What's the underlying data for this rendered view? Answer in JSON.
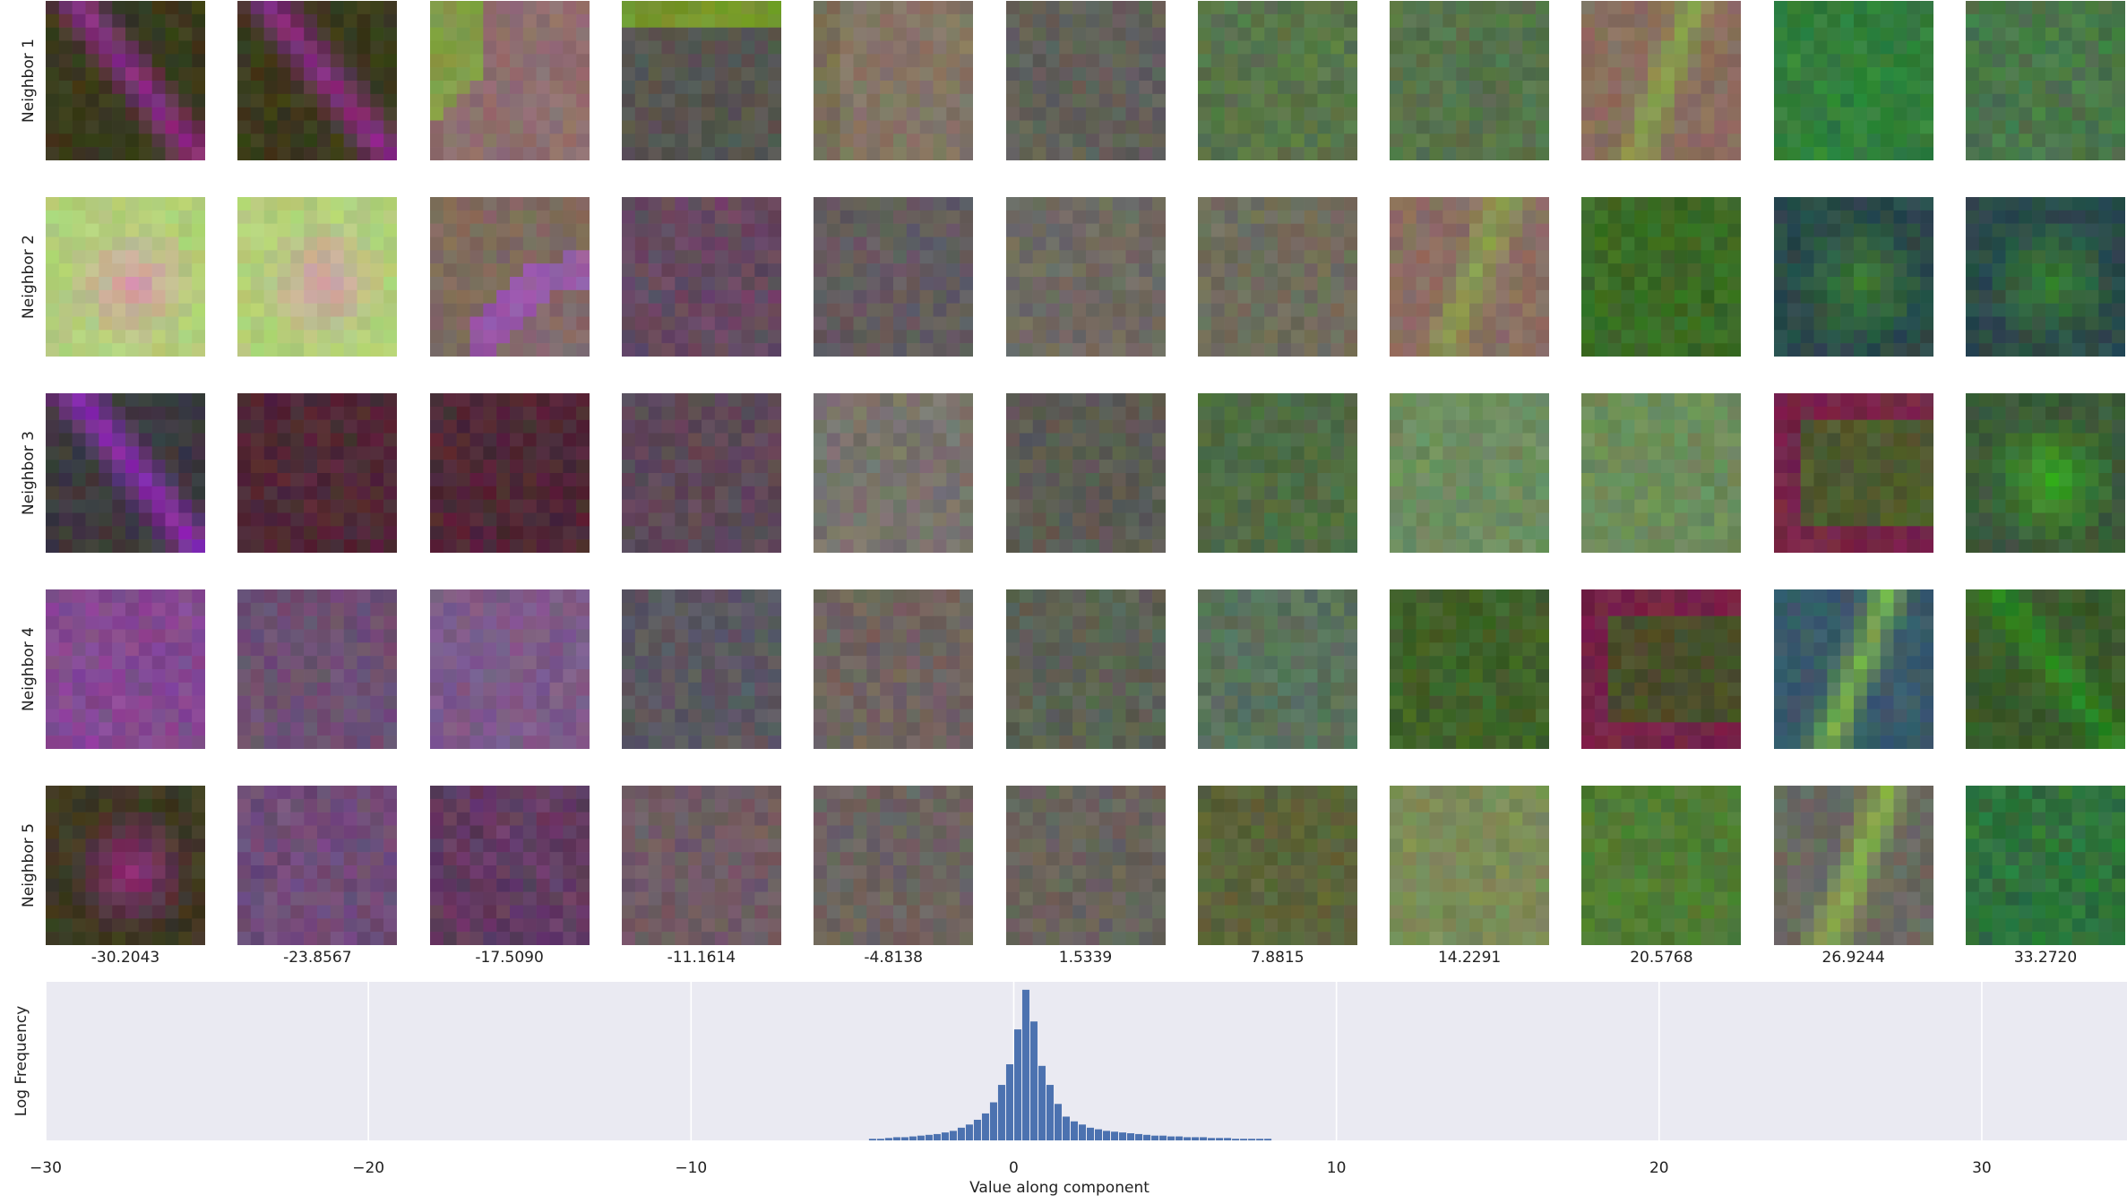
{
  "rows": [
    {
      "label": "Neighbor 1",
      "thumbs": [
        {
          "base": "#3a3a1c",
          "accent": "#8c2a86",
          "pattern": "diag"
        },
        {
          "base": "#3a3a1c",
          "accent": "#8c2a86",
          "pattern": "diag"
        },
        {
          "base": "#8e6e6e",
          "accent": "#7fa040",
          "pattern": "corner"
        },
        {
          "base": "#555450",
          "accent": "#7aa028",
          "pattern": "topband"
        },
        {
          "base": "#837565",
          "accent": "#6f6a4c",
          "pattern": "leftband"
        },
        {
          "base": "#5f5e58",
          "accent": "#6a685e",
          "pattern": "noise"
        },
        {
          "base": "#56704a",
          "accent": "#5e8c44",
          "pattern": "noise"
        },
        {
          "base": "#56704c",
          "accent": "#5a8246",
          "pattern": "noise"
        },
        {
          "base": "#8a6e5e",
          "accent": "#8aa04a",
          "pattern": "stripe"
        },
        {
          "base": "#2e7a3a",
          "accent": "#3e9a3a",
          "pattern": "noise"
        },
        {
          "base": "#4a704c",
          "accent": "#3e9a3a",
          "pattern": "noise"
        }
      ]
    },
    {
      "label": "Neighbor 2",
      "thumbs": [
        {
          "base": "#b2d07a",
          "accent": "#d49aaa",
          "pattern": "blob"
        },
        {
          "base": "#b2d07a",
          "accent": "#d49aaa",
          "pattern": "blob"
        },
        {
          "base": "#806a5e",
          "accent": "#9a58b0",
          "pattern": "arc"
        },
        {
          "base": "#5e4a5e",
          "accent": "#8a3e6e",
          "pattern": "noise"
        },
        {
          "base": "#625a5e",
          "accent": "#6a5e62",
          "pattern": "noise"
        },
        {
          "base": "#6e6860",
          "accent": "#767066",
          "pattern": "noise"
        },
        {
          "base": "#6e6c5c",
          "accent": "#767460",
          "pattern": "noise"
        },
        {
          "base": "#8a6e62",
          "accent": "#8aa04a",
          "pattern": "stripe"
        },
        {
          "base": "#3e6e26",
          "accent": "#2e5a1e",
          "pattern": "noise"
        },
        {
          "base": "#2a4a4a",
          "accent": "#3a8030",
          "pattern": "blob"
        },
        {
          "base": "#2a4a4a",
          "accent": "#3a8030",
          "pattern": "blob"
        }
      ]
    },
    {
      "label": "Neighbor 3",
      "thumbs": [
        {
          "base": "#3c3a3e",
          "accent": "#8a2ab0",
          "pattern": "diag"
        },
        {
          "base": "#4a2a34",
          "accent": "#6e1a3a",
          "pattern": "noise"
        },
        {
          "base": "#4a2a34",
          "accent": "#6e1a3a",
          "pattern": "noise"
        },
        {
          "base": "#5a4a56",
          "accent": "#6e3e5e",
          "pattern": "noise"
        },
        {
          "base": "#76716a",
          "accent": "#86807a",
          "pattern": "noise"
        },
        {
          "base": "#5a5a52",
          "accent": "#646258",
          "pattern": "noise"
        },
        {
          "base": "#4e6a42",
          "accent": "#567248",
          "pattern": "noise"
        },
        {
          "base": "#6a8a5e",
          "accent": "#7a9a6a",
          "pattern": "noise"
        },
        {
          "base": "#6a8a58",
          "accent": "#7a9a66",
          "pattern": "noise"
        },
        {
          "base": "#4e5a2e",
          "accent": "#7a1e4a",
          "pattern": "frame"
        },
        {
          "base": "#3a5a3a",
          "accent": "#3aa820",
          "pattern": "blob"
        }
      ]
    },
    {
      "label": "Neighbor 4",
      "thumbs": [
        {
          "base": "#7e4a8e",
          "accent": "#a040a8",
          "pattern": "noise"
        },
        {
          "base": "#6a5470",
          "accent": "#7a3e82",
          "pattern": "noise"
        },
        {
          "base": "#7a5a86",
          "accent": "#8e5e9a",
          "pattern": "noise"
        },
        {
          "base": "#5a5660",
          "accent": "#625e66",
          "pattern": "noise"
        },
        {
          "base": "#6e625e",
          "accent": "#766a64",
          "pattern": "noise"
        },
        {
          "base": "#5a6052",
          "accent": "#62685a",
          "pattern": "noise"
        },
        {
          "base": "#58705a",
          "accent": "#5e7a60",
          "pattern": "noise"
        },
        {
          "base": "#3e5e26",
          "accent": "#4a7030",
          "pattern": "noise"
        },
        {
          "base": "#4a4e2a",
          "accent": "#7a1e4a",
          "pattern": "frame"
        },
        {
          "base": "#3a5a6a",
          "accent": "#7ab04a",
          "pattern": "stripe"
        },
        {
          "base": "#3a5a2a",
          "accent": "#2a8a20",
          "pattern": "diag"
        }
      ]
    },
    {
      "label": "Neighbor 5",
      "thumbs": [
        {
          "base": "#3e3a22",
          "accent": "#8a2a7a",
          "pattern": "blob"
        },
        {
          "base": "#6a4a72",
          "accent": "#8a5e9a",
          "pattern": "noise"
        },
        {
          "base": "#5a3a5a",
          "accent": "#8a3e82",
          "pattern": "noise"
        },
        {
          "base": "#6e5a62",
          "accent": "#7a6068",
          "pattern": "noise"
        },
        {
          "base": "#6a625e",
          "accent": "#726a66",
          "pattern": "noise"
        },
        {
          "base": "#66625a",
          "accent": "#6e6a60",
          "pattern": "noise"
        },
        {
          "base": "#5a6238",
          "accent": "#626a3e",
          "pattern": "noise"
        },
        {
          "base": "#7a8a56",
          "accent": "#82925e",
          "pattern": "noise"
        },
        {
          "base": "#4e7a32",
          "accent": "#5a8a3a",
          "pattern": "noise"
        },
        {
          "base": "#6a6a60",
          "accent": "#8ab04a",
          "pattern": "stripe"
        },
        {
          "base": "#2e6a3e",
          "accent": "#2a9a30",
          "pattern": "noise"
        }
      ]
    }
  ],
  "columns": [
    "-30.2043",
    "-23.8567",
    "-17.5090",
    "-11.1614",
    "-4.8138",
    "1.5339",
    "7.8815",
    "14.2291",
    "20.5768",
    "26.9244",
    "33.2720"
  ],
  "chart_data": {
    "type": "bar",
    "title": "",
    "xlabel": "Value along component",
    "ylabel": "Log Frequency",
    "xlim": [
      -30,
      34.5
    ],
    "xticks": [
      -30,
      -20,
      -10,
      0,
      10,
      20,
      30
    ],
    "xtick_labels": [
      "−30",
      "−20",
      "−10",
      "0",
      "10",
      "20",
      "30"
    ],
    "ylim": [
      0,
      100
    ],
    "grid": true,
    "bar_color": "#4c72b0",
    "background": "#eaeaf2",
    "bin_width": 0.25,
    "x": [
      -4.5,
      -4.25,
      -4.0,
      -3.75,
      -3.5,
      -3.25,
      -3.0,
      -2.75,
      -2.5,
      -2.25,
      -2.0,
      -1.75,
      -1.5,
      -1.25,
      -1.0,
      -0.75,
      -0.5,
      -0.25,
      0.0,
      0.25,
      0.5,
      0.75,
      1.0,
      1.25,
      1.5,
      1.75,
      2.0,
      2.25,
      2.5,
      2.75,
      3.0,
      3.25,
      3.5,
      3.75,
      4.0,
      4.25,
      4.5,
      4.75,
      5.0,
      5.25,
      5.5,
      5.75,
      6.0,
      6.25,
      6.5,
      6.75,
      7.0,
      7.25,
      7.5,
      7.75
    ],
    "values": [
      1,
      1,
      1.5,
      2,
      2,
      2.5,
      3,
      3.5,
      4,
      5,
      6,
      8,
      10,
      13,
      17,
      24,
      35,
      48,
      70,
      95,
      75,
      47,
      35,
      23,
      15,
      12,
      10,
      8,
      7,
      6,
      5.5,
      5,
      4.5,
      4,
      3.5,
      3,
      3,
      2.5,
      2.5,
      2,
      2,
      2,
      1.5,
      1.5,
      1.5,
      1,
      1,
      1,
      1,
      1
    ]
  }
}
